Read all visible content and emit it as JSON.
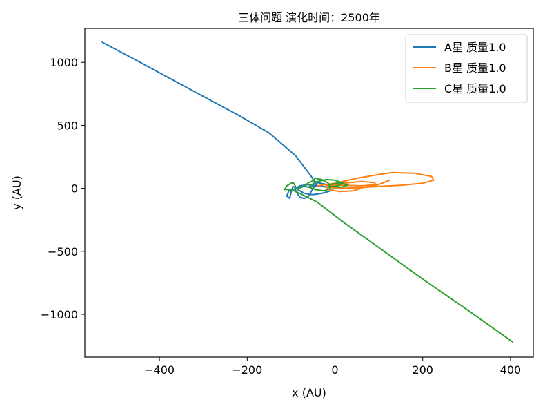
{
  "chart_data": {
    "type": "line",
    "title": "三体问题 演化时间：2500年",
    "xlabel": "x (AU)",
    "ylabel": "y (AU)",
    "xlim": [
      -570,
      452
    ],
    "ylim": [
      -1340,
      1270
    ],
    "xticks": [
      -400,
      -200,
      0,
      200,
      400
    ],
    "yticks": [
      -1000,
      -500,
      0,
      500,
      1000
    ],
    "xtick_labels": [
      "−400",
      "−200",
      "0",
      "200",
      "400"
    ],
    "ytick_labels": [
      "−1000",
      "−500",
      "0",
      "500",
      "1000"
    ],
    "grid": false,
    "legend_position": "top-right",
    "series": [
      {
        "name": "A星 质量1.0",
        "color": "#1f77b4",
        "x": [
          -530,
          -460,
          -380,
          -300,
          -220,
          -150,
          -90,
          -55,
          -40,
          -60,
          -80,
          -95,
          -105,
          -110,
          -103,
          -100,
          -96,
          -92,
          -88,
          -80,
          -70,
          -60,
          -50,
          -40,
          -25,
          -10,
          0,
          -10,
          -30,
          -50,
          -70,
          -85,
          -80,
          -60,
          -40,
          -20
        ],
        "y": [
          1160,
          1030,
          880,
          730,
          580,
          440,
          260,
          100,
          20,
          10,
          20,
          -10,
          -20,
          -60,
          -80,
          -30,
          15,
          10,
          -30,
          -70,
          -80,
          -60,
          0,
          45,
          35,
          20,
          10,
          -20,
          -40,
          -50,
          -40,
          -10,
          20,
          30,
          20,
          10
        ]
      },
      {
        "name": "B星 质量1.0",
        "color": "#ff7f0e",
        "x": [
          -40,
          0,
          50,
          100,
          130,
          180,
          220,
          225,
          200,
          150,
          100,
          50,
          10,
          -15,
          -10,
          20,
          60,
          90,
          95,
          70,
          40,
          10,
          -15,
          -20,
          -10,
          20,
          60,
          100,
          125
        ],
        "y": [
          20,
          40,
          80,
          110,
          125,
          120,
          95,
          65,
          40,
          25,
          15,
          5,
          0,
          10,
          20,
          40,
          55,
          45,
          25,
          10,
          -20,
          -25,
          -10,
          20,
          30,
          25,
          20,
          30,
          65
        ]
      },
      {
        "name": "C星 质量1.0",
        "color": "#2ca02c",
        "x": [
          405,
          300,
          200,
          100,
          20,
          -40,
          -80,
          -100,
          -115,
          -110,
          -100,
          -95,
          -90,
          -85,
          -75,
          -60,
          -50,
          -45,
          -30,
          -15,
          -10,
          -25,
          -45,
          -60,
          -45,
          -20,
          0,
          20,
          5,
          -15,
          -10,
          10,
          30,
          15,
          -5
        ],
        "y": [
          -1220,
          -960,
          -720,
          -470,
          -270,
          -110,
          -40,
          -10,
          -10,
          20,
          40,
          45,
          15,
          -10,
          10,
          45,
          60,
          80,
          70,
          40,
          0,
          -20,
          -10,
          10,
          50,
          70,
          65,
          40,
          20,
          10,
          30,
          45,
          25,
          10,
          15
        ]
      }
    ]
  }
}
